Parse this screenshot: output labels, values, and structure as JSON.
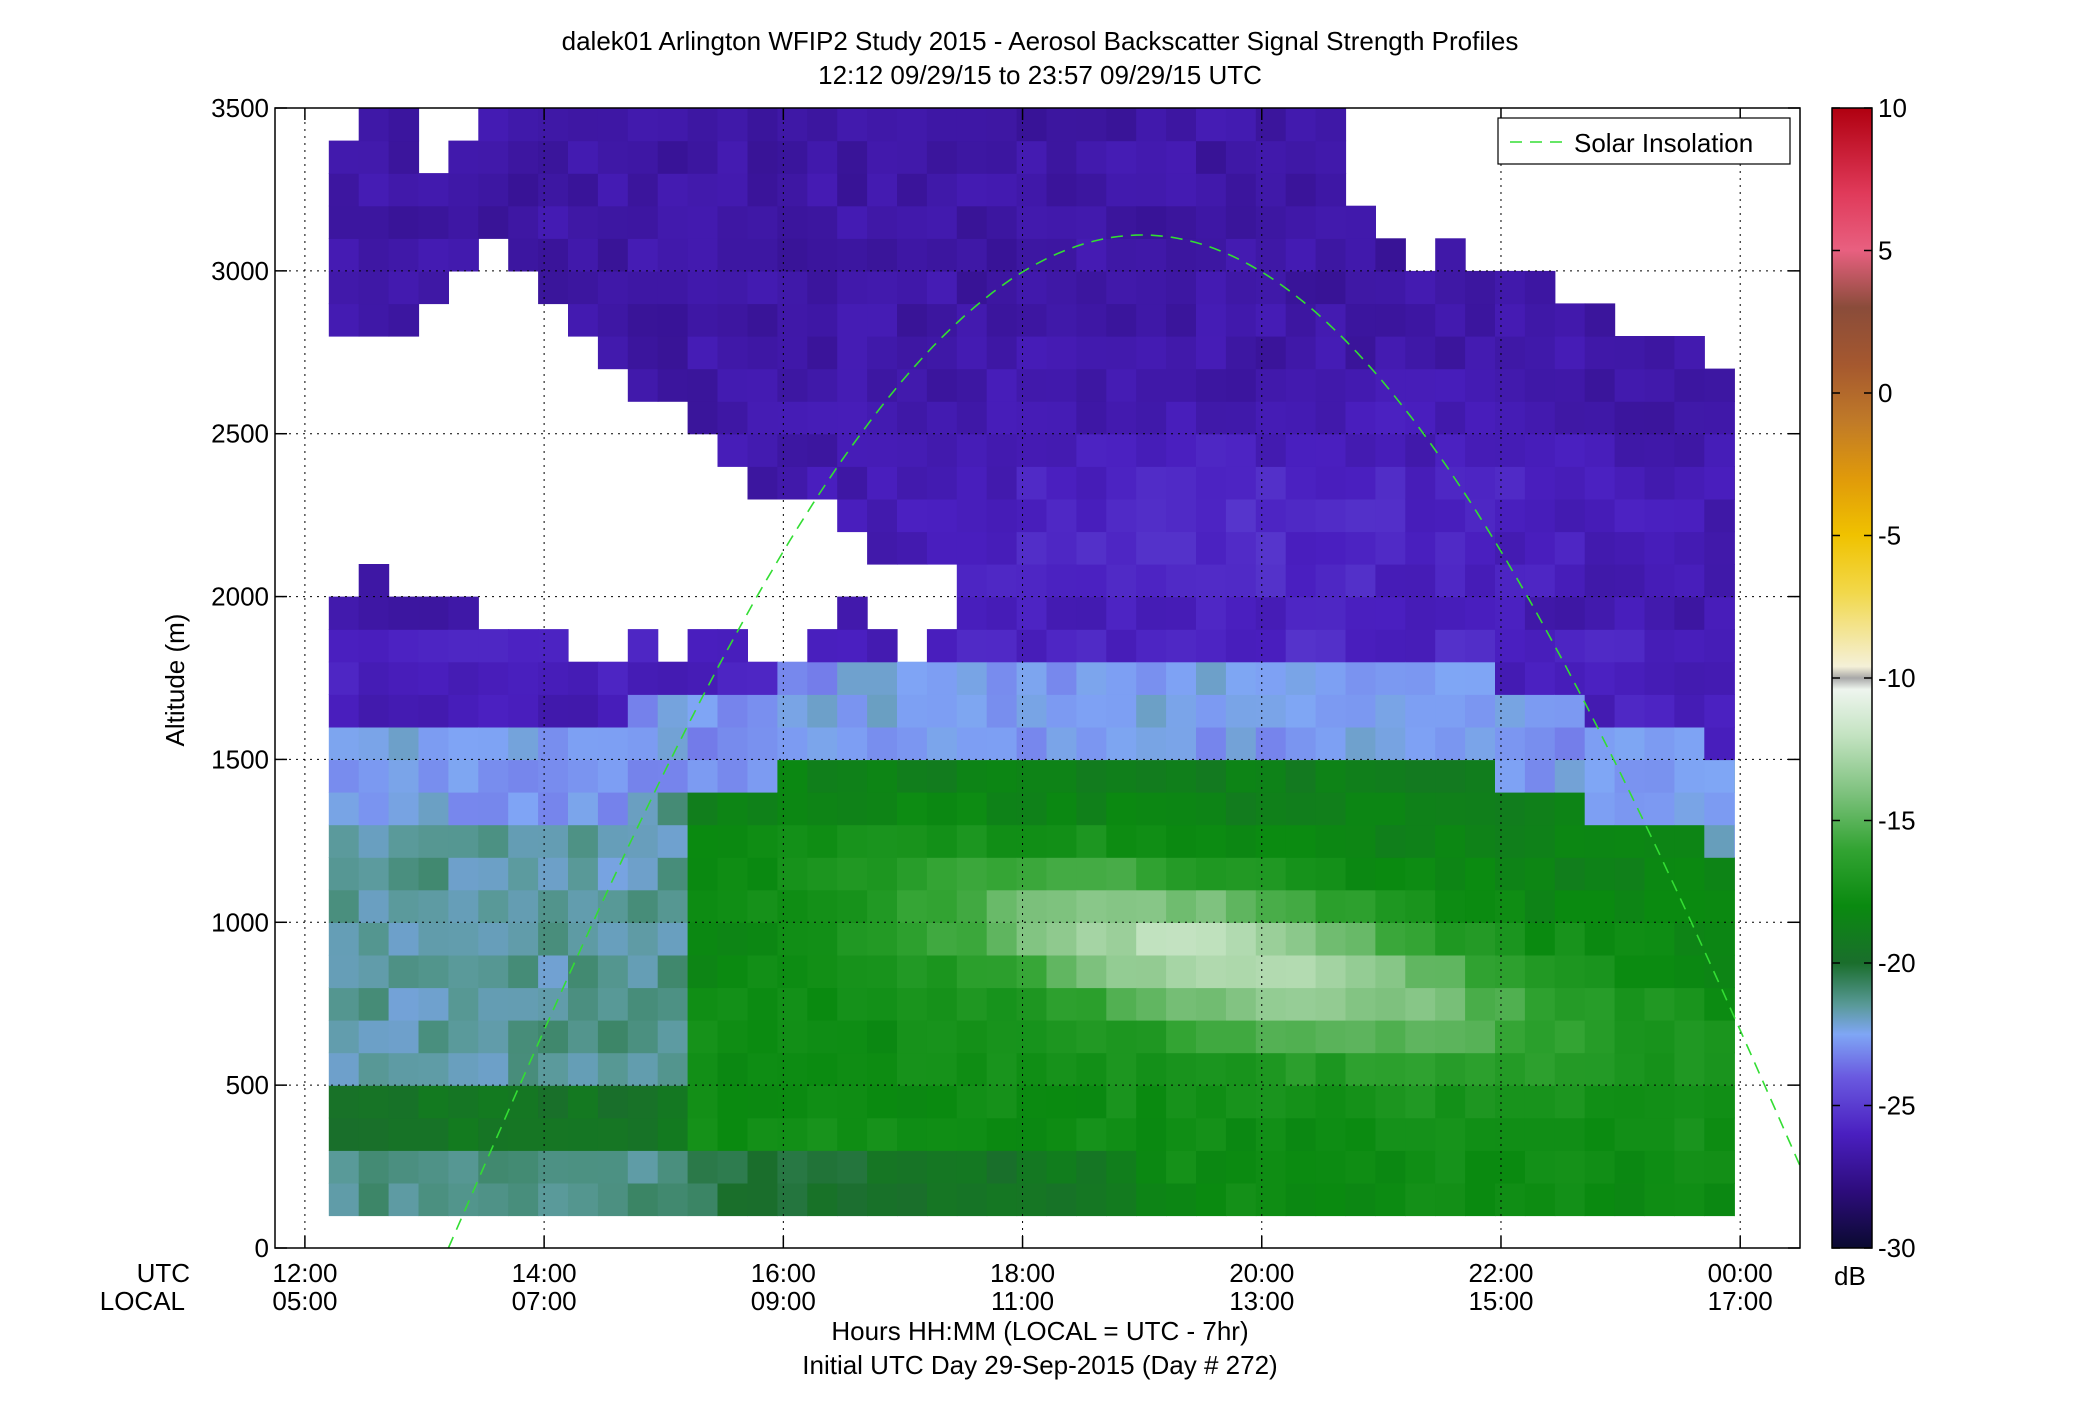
{
  "chart_data": {
    "type": "heatmap",
    "title": "dalek01 Arlington WFIP2 Study 2015 - Aerosol Backscatter Signal Strength Profiles",
    "subtitle": "12:12 09/29/15 to 23:57 09/29/15  UTC",
    "ylabel": "Altitude (m)",
    "xlabel_line1": "Hours HH:MM  (LOCAL = UTC - 7hr)",
    "xlabel_line2": "Initial UTC Day 29-Sep-2015 (Day # 272)",
    "x_row_label_utc": "UTC",
    "x_row_label_local": "LOCAL",
    "xlim": [
      11.75,
      24.5
    ],
    "ylim": [
      0,
      3500
    ],
    "grid": true,
    "x_ticks": [
      {
        "value": 12,
        "utc": "12:00",
        "local": "05:00"
      },
      {
        "value": 14,
        "utc": "14:00",
        "local": "07:00"
      },
      {
        "value": 16,
        "utc": "16:00",
        "local": "09:00"
      },
      {
        "value": 18,
        "utc": "18:00",
        "local": "11:00"
      },
      {
        "value": 20,
        "utc": "20:00",
        "local": "13:00"
      },
      {
        "value": 22,
        "utc": "22:00",
        "local": "15:00"
      },
      {
        "value": 24,
        "utc": "00:00",
        "local": "17:00"
      }
    ],
    "y_ticks": [
      {
        "value": 0,
        "label": "0"
      },
      {
        "value": 500,
        "label": "500"
      },
      {
        "value": 1000,
        "label": "1000"
      },
      {
        "value": 1500,
        "label": "1500"
      },
      {
        "value": 2000,
        "label": "2000"
      },
      {
        "value": 2500,
        "label": "2500"
      },
      {
        "value": 3000,
        "label": "3000"
      },
      {
        "value": 3500,
        "label": "3500"
      }
    ],
    "data_start_hour": 12.2,
    "data_end_hour": 23.95,
    "time_step_hours": 0.25,
    "altitude_bottom": 100,
    "altitude_step_m": 100,
    "top_of_data_m": [
      3400,
      3500,
      3500,
      3300,
      3400,
      3500,
      3500,
      3500,
      3500,
      3500,
      3500,
      3500,
      3500,
      3500,
      3500,
      3500,
      3500,
      3500,
      3500,
      3500,
      3500,
      3500,
      3500,
      3500,
      3500,
      3500,
      3500,
      3500,
      3500,
      3500,
      3500,
      3500,
      3500,
      3500,
      3200,
      3100,
      3000,
      3100,
      3000,
      3000,
      3000,
      2900,
      2900,
      2800,
      2800,
      2800,
      2700,
      2700
    ],
    "valid_min_alt_m": [
      2650,
      2650,
      2650,
      2650,
      2000,
      2000,
      2000,
      2000,
      2000,
      2000,
      2000,
      2000,
      2000,
      2000,
      2000,
      2000,
      2000,
      2000,
      2000,
      2000,
      2000,
      2000
    ],
    "gap_top_m": [
      2800,
      2850,
      2850,
      2950,
      3050,
      3100,
      3050,
      2950,
      2800,
      2700,
      2650,
      2600,
      2550,
      2450,
      2350,
      2300,
      2300,
      2250,
      2150,
      2150,
      2150,
      2100
    ],
    "gap_bottom_m": [
      2000,
      2050,
      2000,
      1950,
      1950,
      1900,
      1900,
      1900,
      1800,
      1800,
      1850,
      1800,
      1900,
      1850,
      1800,
      1800,
      1850,
      1950,
      1850,
      1750,
      1900,
      2050
    ],
    "layers": [
      {
        "name": "surface_layer",
        "alt_min": 100,
        "alt_max": 300,
        "value_dB": -21
      },
      {
        "name": "low_band",
        "alt_min": 300,
        "alt_max": 500,
        "value_dB": -19.5
      },
      {
        "name": "aerosol_layer",
        "alt_min": 500,
        "alt_max": 1300,
        "value_dB": -18
      },
      {
        "name": "transition",
        "alt_min": 1300,
        "alt_max": 1500,
        "value_dB": -22.5
      },
      {
        "name": "free_troposphere",
        "alt_min": 1500,
        "alt_max": 3500,
        "value_dB": -26.5
      }
    ],
    "boundary_layer_top_m": [
      1350,
      1350,
      1350,
      1350,
      1350,
      1350,
      1350,
      1350,
      1350,
      1350,
      1400,
      1400,
      1450,
      1450,
      1450,
      1500,
      1500,
      1500,
      1500,
      1500,
      1500,
      1500,
      1500,
      1500,
      1500,
      1500,
      1500,
      1500,
      1500,
      1500,
      1500,
      1500,
      1500,
      1500,
      1500,
      1500,
      1500,
      1500,
      1500,
      1450,
      1450,
      1400,
      1350,
      1350,
      1300,
      1300,
      1250,
      1200
    ],
    "enhanced_plume": {
      "peak_hour": 19.3,
      "peak_alt_m": 950,
      "peak_value_dB": -12
    },
    "solar_insolation": {
      "label": "Solar Insolation",
      "color": "#33dd33",
      "start_hour": 13.2,
      "peak_hour": 19.0,
      "end_hour": 24.5,
      "peak_alt_m": 3110
    },
    "colorbar": {
      "min": -30,
      "max": 10,
      "unit": "dB",
      "ticks": [
        {
          "value": 10,
          "label": "10"
        },
        {
          "value": 5,
          "label": "5"
        },
        {
          "value": 0,
          "label": "0"
        },
        {
          "value": -5,
          "label": "-5"
        },
        {
          "value": -10,
          "label": "-10"
        },
        {
          "value": -15,
          "label": "-15"
        },
        {
          "value": -20,
          "label": "-20"
        },
        {
          "value": -25,
          "label": "-25"
        },
        {
          "value": -30,
          "label": "-30"
        }
      ],
      "stops": [
        {
          "v": -30,
          "color": "#0a0a30"
        },
        {
          "v": -28,
          "color": "#2d0c7c"
        },
        {
          "v": -26,
          "color": "#4a1fc0"
        },
        {
          "v": -24,
          "color": "#6a5ae0"
        },
        {
          "v": -22.5,
          "color": "#7fa6f5"
        },
        {
          "v": -21.5,
          "color": "#5a9a9a"
        },
        {
          "v": -20,
          "color": "#1a6e2c"
        },
        {
          "v": -18,
          "color": "#0a8a10"
        },
        {
          "v": -16,
          "color": "#33a433"
        },
        {
          "v": -14,
          "color": "#7fc27f"
        },
        {
          "v": -12,
          "color": "#c4e3c2"
        },
        {
          "v": -10.4,
          "color": "#eef5ee"
        },
        {
          "v": -10,
          "color": "#a8a8a8"
        },
        {
          "v": -9.6,
          "color": "#f4f0d8"
        },
        {
          "v": -7,
          "color": "#f2d84a"
        },
        {
          "v": -5,
          "color": "#f0c200"
        },
        {
          "v": -3,
          "color": "#e09a0a"
        },
        {
          "v": -1,
          "color": "#c07a28"
        },
        {
          "v": 1,
          "color": "#a5582f"
        },
        {
          "v": 3,
          "color": "#8a4c3a"
        },
        {
          "v": 5,
          "color": "#e86080"
        },
        {
          "v": 7,
          "color": "#e03a5a"
        },
        {
          "v": 10,
          "color": "#b00010"
        }
      ]
    },
    "legend_position": "top-right"
  }
}
